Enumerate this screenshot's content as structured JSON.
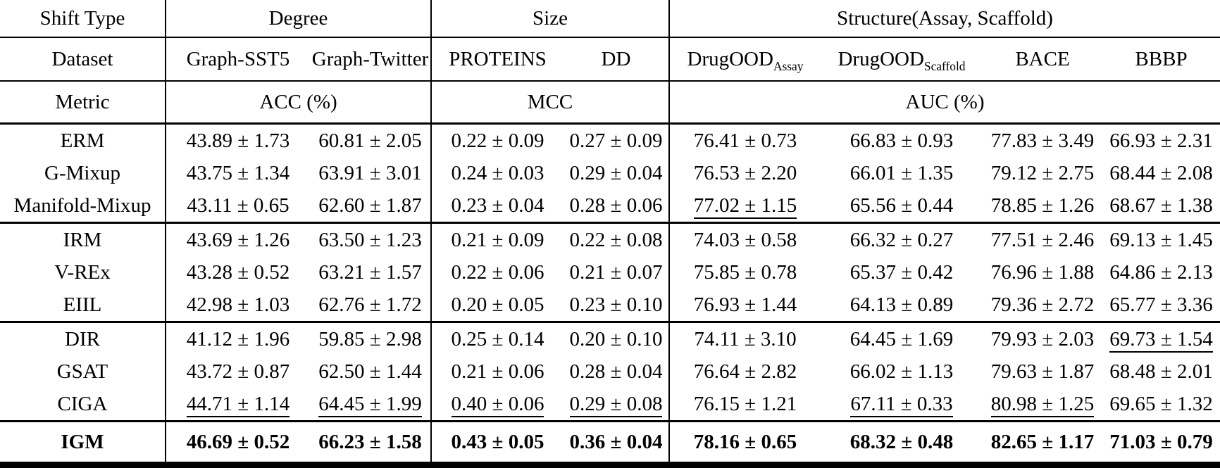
{
  "table": {
    "header_row1": {
      "shift_type": "Shift Type",
      "degree": "Degree",
      "size": "Size",
      "structure": "Structure(Assay, Scaffold)"
    },
    "header_row2": {
      "label": "Dataset",
      "graph_sst5": "Graph-SST5",
      "graph_twitter": "Graph-Twitter",
      "proteins": "PROTEINS",
      "dd": "DD",
      "drugood_assay_base": "DrugOOD",
      "drugood_assay_sub": "Assay",
      "drugood_scaffold_base": "DrugOOD",
      "drugood_scaffold_sub": "Scaffold",
      "bace": "BACE",
      "bbbp": "BBBP"
    },
    "header_row3": {
      "label": "Metric",
      "acc": "ACC (%)",
      "mcc": "MCC",
      "auc": "AUC (%)"
    },
    "groups": [
      {
        "rows": [
          {
            "method": "ERM",
            "bold": false,
            "underlined": [],
            "values": [
              "43.89 ± 1.73",
              "60.81 ± 2.05",
              "0.22 ± 0.09",
              "0.27 ± 0.09",
              "76.41 ± 0.73",
              "66.83 ± 0.93",
              "77.83 ± 3.49",
              "66.93 ± 2.31"
            ]
          },
          {
            "method": "G-Mixup",
            "bold": false,
            "underlined": [],
            "values": [
              "43.75 ± 1.34",
              "63.91 ± 3.01",
              "0.24 ± 0.03",
              "0.29 ± 0.04",
              "76.53 ± 2.20",
              "66.01 ± 1.35",
              "79.12 ± 2.75",
              "68.44 ± 2.08"
            ]
          },
          {
            "method": "Manifold-Mixup",
            "bold": false,
            "underlined": [
              4
            ],
            "values": [
              "43.11 ± 0.65",
              "62.60 ± 1.87",
              "0.23 ± 0.04",
              "0.28 ± 0.06",
              "77.02 ± 1.15",
              "65.56 ± 0.44",
              "78.85 ± 1.26",
              "68.67 ± 1.38"
            ]
          }
        ]
      },
      {
        "rows": [
          {
            "method": "IRM",
            "bold": false,
            "underlined": [],
            "values": [
              "43.69 ± 1.26",
              "63.50 ± 1.23",
              "0.21 ± 0.09",
              "0.22 ± 0.08",
              "74.03 ± 0.58",
              "66.32 ± 0.27",
              "77.51 ± 2.46",
              "69.13 ± 1.45"
            ]
          },
          {
            "method": "V-REx",
            "bold": false,
            "underlined": [],
            "values": [
              "43.28 ± 0.52",
              "63.21 ± 1.57",
              "0.22 ± 0.06",
              "0.21 ± 0.07",
              "75.85 ± 0.78",
              "65.37 ± 0.42",
              "76.96 ± 1.88",
              "64.86 ± 2.13"
            ]
          },
          {
            "method": "EIIL",
            "bold": false,
            "underlined": [],
            "values": [
              "42.98 ± 1.03",
              "62.76 ± 1.72",
              "0.20 ± 0.05",
              "0.23 ± 0.10",
              "76.93 ± 1.44",
              "64.13 ± 0.89",
              "79.36 ± 2.72",
              "65.77 ± 3.36"
            ]
          }
        ]
      },
      {
        "rows": [
          {
            "method": "DIR",
            "bold": false,
            "underlined": [
              7
            ],
            "values": [
              "41.12 ± 1.96",
              "59.85 ± 2.98",
              "0.25 ± 0.14",
              "0.20 ± 0.10",
              "74.11 ± 3.10",
              "64.45 ± 1.69",
              "79.93 ± 2.03",
              "69.73 ± 1.54"
            ]
          },
          {
            "method": "GSAT",
            "bold": false,
            "underlined": [],
            "values": [
              "43.72 ± 0.87",
              "62.50 ± 1.44",
              "0.21 ± 0.06",
              "0.28 ± 0.04",
              "76.64 ± 2.82",
              "66.02 ± 1.13",
              "79.63 ± 1.87",
              "68.48 ± 2.01"
            ]
          },
          {
            "method": "CIGA",
            "bold": false,
            "underlined": [
              0,
              1,
              2,
              3,
              5,
              6
            ],
            "values": [
              "44.71 ± 1.14",
              "64.45 ± 1.99",
              "0.40 ± 0.06",
              "0.29 ± 0.08",
              "76.15 ± 1.21",
              "67.11 ± 0.33",
              "80.98 ± 1.25",
              "69.65 ± 1.32"
            ]
          }
        ]
      },
      {
        "rows": [
          {
            "method": "IGM",
            "bold": true,
            "underlined": [],
            "values": [
              "46.69 ± 0.52",
              "66.23 ± 1.58",
              "0.43 ± 0.05",
              "0.36 ± 0.04",
              "78.16 ± 0.65",
              "68.32 ± 0.48",
              "82.65 ± 1.17",
              "71.03 ± 0.79"
            ]
          }
        ]
      }
    ]
  }
}
